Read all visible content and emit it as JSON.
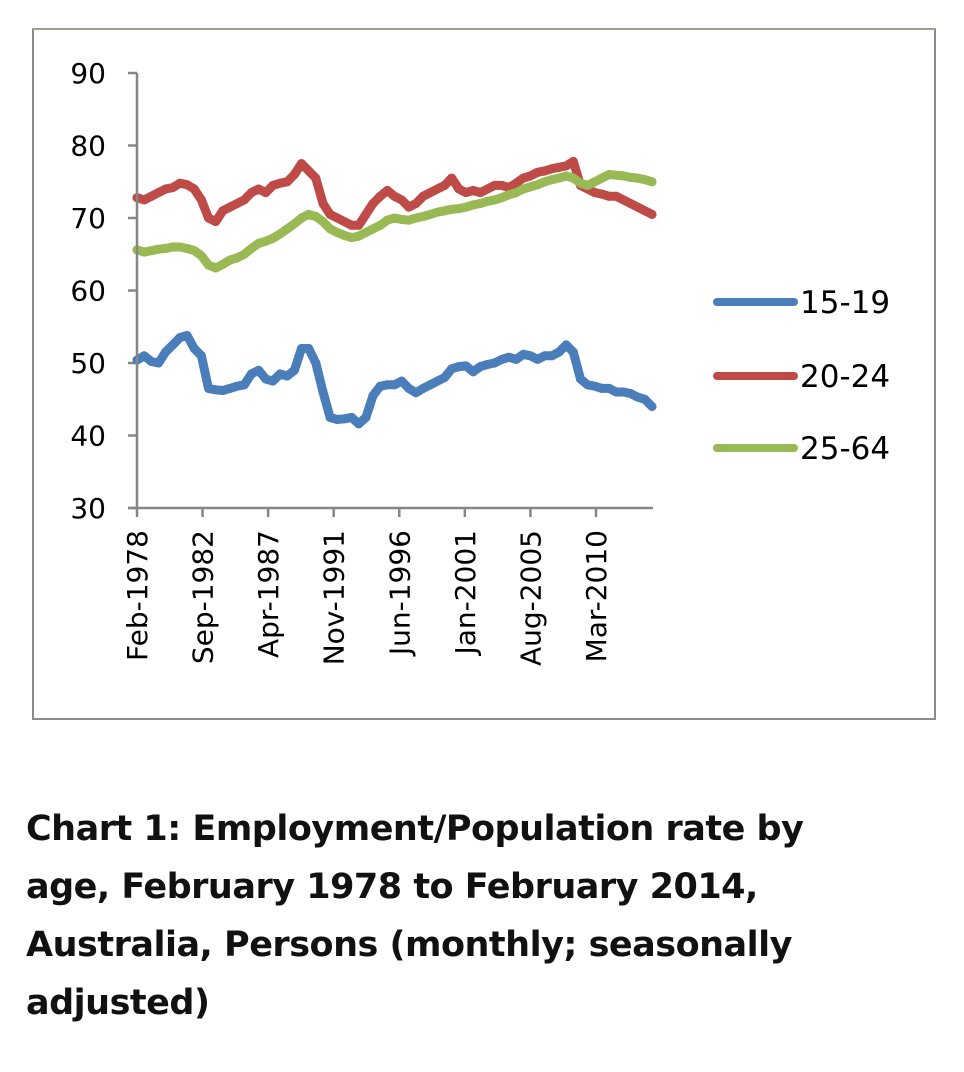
{
  "caption": "Chart 1: Employment/Population rate by age, February 1978 to February 2014, Australia, Persons (monthly; seasonally adjusted)",
  "caption_lines": [
    "Chart 1: Employment/Population rate by",
    "age, February 1978 to February 2014,",
    "Australia, Persons (monthly; seasonally",
    "adjusted)"
  ],
  "chart_data": {
    "type": "line",
    "title": "Chart 1: Employment/Population rate by age, February 1978 to February 2014, Australia, Persons (monthly; seasonally adjusted)",
    "xlabel": "",
    "ylabel": "",
    "x_unit": "months since Feb-1978",
    "xlim": [
      0,
      432
    ],
    "ylim": [
      30,
      90
    ],
    "yticks": [
      30,
      40,
      50,
      60,
      70,
      80,
      90
    ],
    "xticks": [
      {
        "month": 0,
        "label": "Feb-1978"
      },
      {
        "month": 55,
        "label": "Sep-1982"
      },
      {
        "month": 110,
        "label": "Apr-1987"
      },
      {
        "month": 165,
        "label": "Nov-1991"
      },
      {
        "month": 220,
        "label": "Jun-1996"
      },
      {
        "month": 275,
        "label": "Jan-2001"
      },
      {
        "month": 330,
        "label": "Aug-2005"
      },
      {
        "month": 385,
        "label": "Mar-2010"
      }
    ],
    "grid": false,
    "legend_position": "right",
    "x": [
      0,
      6,
      12,
      18,
      24,
      30,
      36,
      42,
      48,
      54,
      60,
      66,
      72,
      78,
      84,
      90,
      96,
      102,
      108,
      114,
      120,
      126,
      132,
      138,
      144,
      150,
      156,
      162,
      168,
      174,
      180,
      186,
      192,
      198,
      204,
      210,
      216,
      222,
      228,
      234,
      240,
      246,
      252,
      258,
      264,
      270,
      276,
      282,
      288,
      294,
      300,
      306,
      312,
      318,
      324,
      330,
      336,
      342,
      348,
      354,
      360,
      366,
      372,
      378,
      384,
      390,
      396,
      402,
      408,
      414,
      420,
      426,
      432
    ],
    "series": [
      {
        "name": "15-19",
        "color": "#4a7ebb",
        "values": [
          50.4,
          51.0,
          50.2,
          50.0,
          51.5,
          52.5,
          53.5,
          53.8,
          52.0,
          51.0,
          46.5,
          46.3,
          46.2,
          46.5,
          46.8,
          47.0,
          48.5,
          49.0,
          47.8,
          47.5,
          48.5,
          48.2,
          49.0,
          52.0,
          52.0,
          50.0,
          46.0,
          42.5,
          42.2,
          42.3,
          42.5,
          41.6,
          42.5,
          45.5,
          46.8,
          47.0,
          47.0,
          47.5,
          46.5,
          45.9,
          46.5,
          47.0,
          47.5,
          48.0,
          49.2,
          49.5,
          49.6,
          48.8,
          49.5,
          49.8,
          50.0,
          50.5,
          50.8,
          50.5,
          51.2,
          51.0,
          50.5,
          51.0,
          51.0,
          51.5,
          52.5,
          51.5,
          47.8,
          47.0,
          46.8,
          46.5,
          46.5,
          46.0,
          46.0,
          45.8,
          45.3,
          45.0,
          44.0
        ]
      },
      {
        "name": "20-24",
        "color": "#be4b48",
        "values": [
          72.8,
          72.5,
          73.0,
          73.5,
          74.0,
          74.2,
          74.8,
          74.6,
          74.0,
          72.5,
          70.0,
          69.5,
          71.0,
          71.5,
          72.0,
          72.5,
          73.5,
          74.0,
          73.5,
          74.5,
          74.8,
          75.0,
          76.0,
          77.5,
          76.5,
          75.5,
          72.0,
          70.5,
          70.0,
          69.5,
          69.0,
          69.0,
          70.5,
          72.0,
          73.0,
          73.8,
          73.0,
          72.5,
          71.5,
          72.0,
          73.0,
          73.5,
          74.0,
          74.5,
          75.5,
          74.0,
          73.5,
          73.8,
          73.5,
          74.0,
          74.5,
          74.5,
          74.2,
          74.8,
          75.5,
          75.8,
          76.3,
          76.5,
          76.8,
          77.0,
          77.2,
          77.8,
          74.5,
          74.0,
          73.5,
          73.3,
          73.0,
          73.0,
          72.5,
          72.0,
          71.5,
          71.0,
          70.5
        ]
      },
      {
        "name": "25-64",
        "color": "#98b954",
        "values": [
          65.6,
          65.3,
          65.5,
          65.7,
          65.8,
          66.0,
          66.0,
          65.8,
          65.5,
          64.8,
          63.5,
          63.1,
          63.6,
          64.2,
          64.5,
          65.0,
          65.8,
          66.5,
          66.8,
          67.2,
          67.8,
          68.5,
          69.2,
          70.0,
          70.5,
          70.2,
          69.5,
          68.5,
          68.0,
          67.6,
          67.3,
          67.5,
          68.0,
          68.5,
          69.0,
          69.7,
          70.0,
          69.8,
          69.7,
          70.0,
          70.2,
          70.5,
          70.8,
          71.0,
          71.2,
          71.3,
          71.5,
          71.8,
          72.0,
          72.3,
          72.5,
          72.8,
          73.2,
          73.5,
          74.0,
          74.3,
          74.6,
          75.0,
          75.3,
          75.5,
          75.8,
          75.5,
          74.8,
          74.5,
          75.0,
          75.5,
          76.0,
          75.9,
          75.8,
          75.6,
          75.5,
          75.3,
          75.0
        ]
      }
    ]
  },
  "colors": {
    "axis": "#868686",
    "frame": "#8c8c8c"
  }
}
